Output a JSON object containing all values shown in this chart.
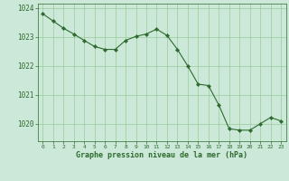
{
  "x": [
    0,
    1,
    2,
    3,
    4,
    5,
    6,
    7,
    8,
    9,
    10,
    11,
    12,
    13,
    14,
    15,
    16,
    17,
    18,
    19,
    20,
    21,
    22,
    23
  ],
  "y": [
    1023.8,
    1023.55,
    1023.3,
    1023.1,
    1022.88,
    1022.67,
    1022.57,
    1022.57,
    1022.88,
    1023.02,
    1023.1,
    1023.27,
    1023.05,
    1022.57,
    1022.0,
    1021.37,
    1021.32,
    1020.65,
    1019.83,
    1019.78,
    1019.78,
    1020.0,
    1020.22,
    1020.1
  ],
  "line_color": "#2d6a2d",
  "marker": "D",
  "marker_size": 2.2,
  "bg_color": "#cce8d8",
  "grid_color": "#99cc99",
  "xlabel": "Graphe pression niveau de la mer (hPa)",
  "ylim": [
    1019.4,
    1024.15
  ],
  "yticks": [
    1020,
    1021,
    1022,
    1023,
    1024
  ],
  "xlim": [
    -0.5,
    23.5
  ],
  "xticks": [
    0,
    1,
    2,
    3,
    4,
    5,
    6,
    7,
    8,
    9,
    10,
    11,
    12,
    13,
    14,
    15,
    16,
    17,
    18,
    19,
    20,
    21,
    22,
    23
  ]
}
